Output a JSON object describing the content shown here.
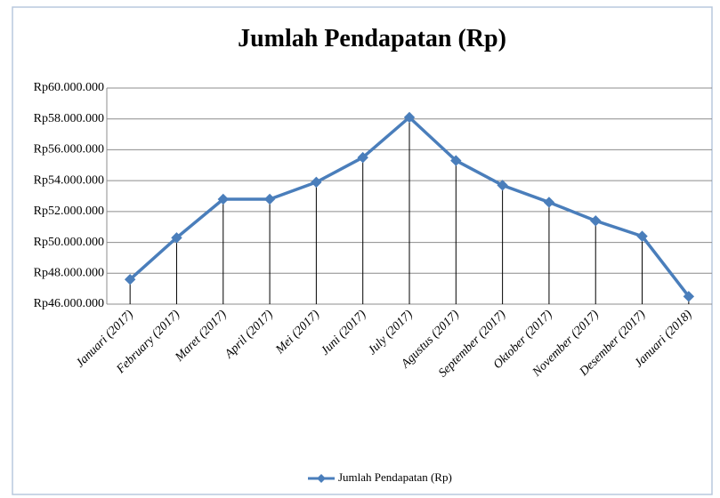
{
  "chart_data": {
    "type": "line",
    "title": "Jumlah Pendapatan (Rp)",
    "categories": [
      "Januari (2017)",
      "February (2017)",
      "Maret (2017)",
      "April (2017)",
      "Mei (2017)",
      "Juni (2017)",
      "July (2017)",
      "Agustus (2017)",
      "September (2017)",
      "Oktober (2017)",
      "November (2017)",
      "Desember (2017)",
      "Januari (2018)"
    ],
    "series": [
      {
        "name": "Jumlah Pendapatan (Rp)",
        "color": "#4a7ebb",
        "values": [
          47600000,
          50300000,
          52800000,
          52800000,
          53900000,
          55500000,
          58100000,
          55300000,
          53700000,
          52600000,
          51400000,
          50400000,
          46500000
        ]
      }
    ],
    "ylim": [
      46000000,
      60000000
    ],
    "yticks": [
      {
        "value": 46000000,
        "label": "Rp46.000.000"
      },
      {
        "value": 48000000,
        "label": "Rp48.000.000"
      },
      {
        "value": 50000000,
        "label": "Rp50.000.000"
      },
      {
        "value": 52000000,
        "label": "Rp52.000.000"
      },
      {
        "value": 54000000,
        "label": "Rp54.000.000"
      },
      {
        "value": 56000000,
        "label": "Rp56.000.000"
      },
      {
        "value": 58000000,
        "label": "Rp58.000.000"
      },
      {
        "value": 60000000,
        "label": "Rp60.000.000"
      }
    ],
    "grid": true,
    "drop_lines": true,
    "legend": "bottom"
  }
}
